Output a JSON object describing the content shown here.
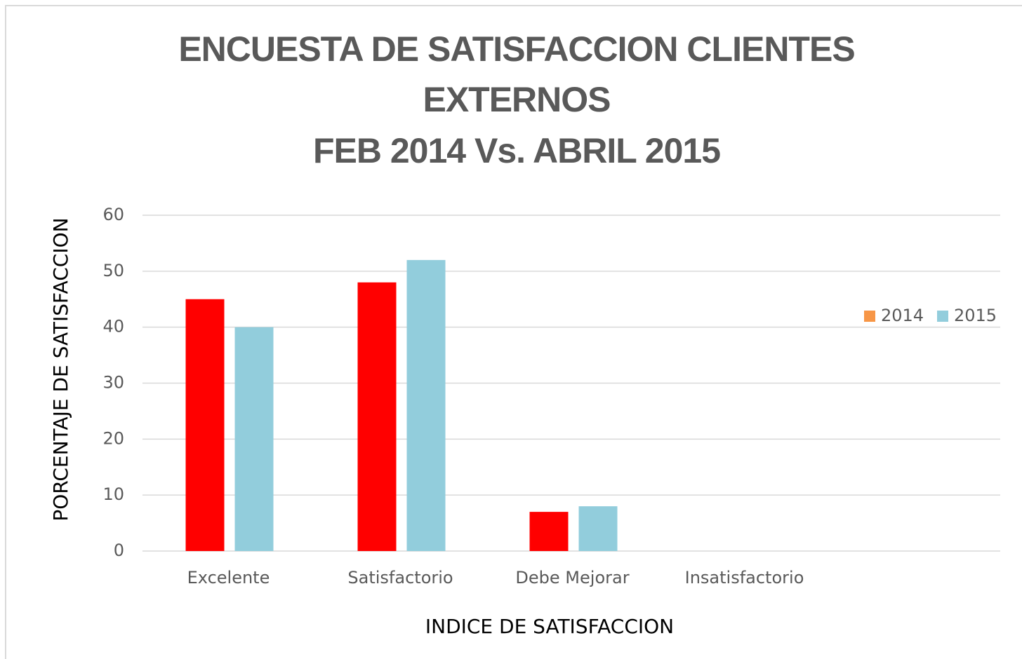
{
  "chart_data": {
    "type": "bar",
    "title": [
      "ENCUESTA DE SATISFACCION CLIENTES",
      "EXTERNOS",
      "FEB 2014 Vs. ABRIL 2015"
    ],
    "x_label": "INDICE DE SATISFACCION",
    "y_label": "PORCENTAJE DE SATISFACCION",
    "categories": [
      "Excelente",
      "Satisfactorio",
      "Debe Mejorar",
      "Insatisfactorio"
    ],
    "series": [
      {
        "name": "2014",
        "color": "#ff0000",
        "legend_color": "#f79646",
        "values": [
          45,
          48,
          7,
          0
        ]
      },
      {
        "name": "2015",
        "color": "#92cddc",
        "legend_color": "#92cddc",
        "values": [
          40,
          52,
          8,
          0
        ]
      }
    ],
    "ylim": [
      0,
      60
    ],
    "yticks": [
      0,
      10,
      20,
      30,
      40,
      50,
      60
    ],
    "grid": true,
    "legend": "right"
  }
}
